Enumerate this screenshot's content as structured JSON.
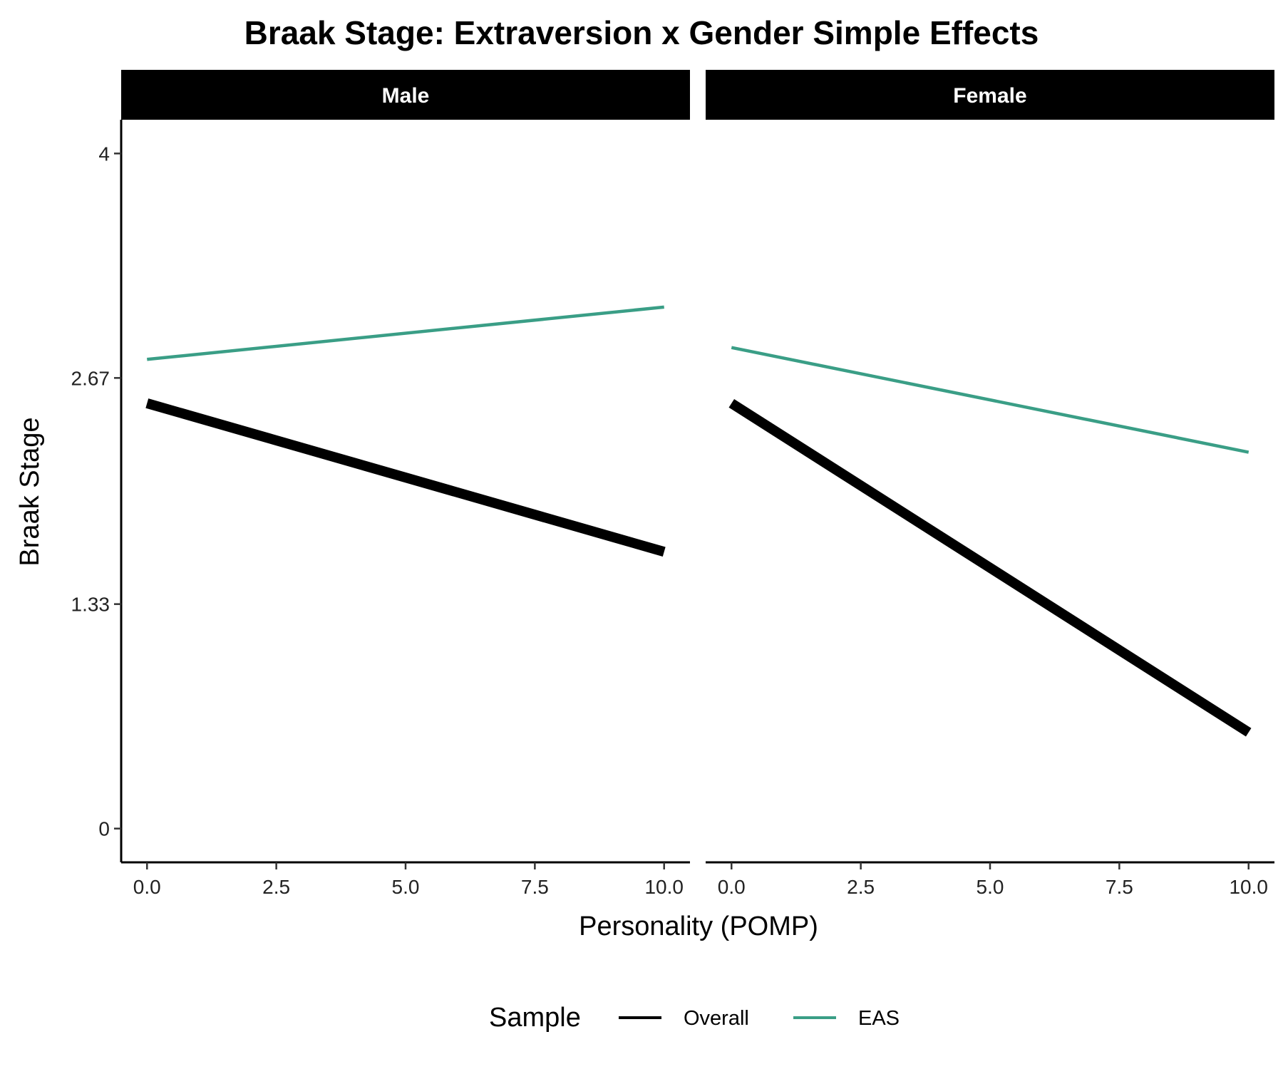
{
  "chart_data": {
    "type": "line",
    "title": "Braak Stage: Extraversion x Gender Simple Effects",
    "xlabel": "Personality (POMP)",
    "ylabel": "Braak Stage",
    "xlim": [
      -0.5,
      10.5
    ],
    "ylim": [
      -0.2,
      4.2
    ],
    "x_ticks": [
      0,
      2.5,
      5,
      7.5,
      10
    ],
    "x_tick_labels": [
      "0.0",
      "2.5",
      "5.0",
      "7.5",
      "10.0"
    ],
    "y_ticks": [
      0,
      1.33,
      2.67,
      4
    ],
    "y_tick_labels": [
      "0",
      "1.33",
      "2.67",
      "4"
    ],
    "grid": false,
    "legend": {
      "title": "Sample",
      "position": "bottom",
      "entries": [
        {
          "label": "Overall",
          "color": "#000000"
        },
        {
          "label": "EAS",
          "color": "#3a9e86"
        }
      ]
    },
    "panels": [
      {
        "name": "Male",
        "series": [
          {
            "name": "Overall",
            "color": "#000000",
            "x": [
              0,
              10
            ],
            "y": [
              2.52,
              1.64
            ]
          },
          {
            "name": "EAS",
            "color": "#3a9e86",
            "x": [
              0,
              10
            ],
            "y": [
              2.78,
              3.09
            ]
          }
        ]
      },
      {
        "name": "Female",
        "series": [
          {
            "name": "Overall",
            "color": "#000000",
            "x": [
              0,
              10
            ],
            "y": [
              2.52,
              0.57
            ]
          },
          {
            "name": "EAS",
            "color": "#3a9e86",
            "x": [
              0,
              10
            ],
            "y": [
              2.85,
              2.23
            ]
          }
        ]
      }
    ]
  }
}
